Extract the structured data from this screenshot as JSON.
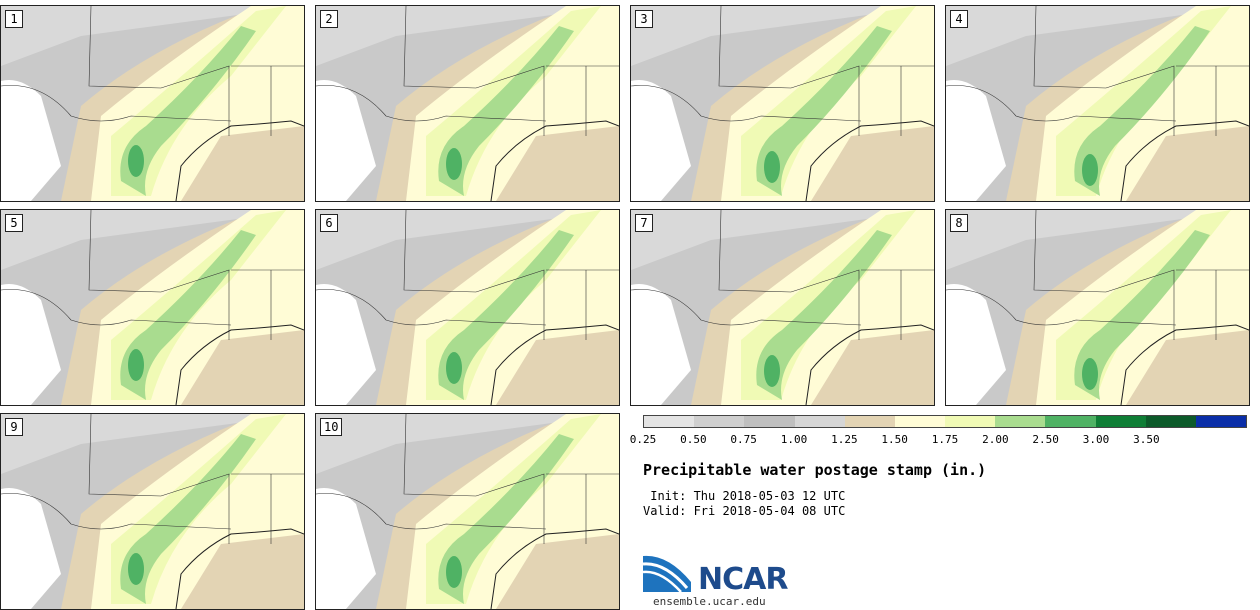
{
  "stamps": [
    {
      "label": "1"
    },
    {
      "label": "2"
    },
    {
      "label": "3"
    },
    {
      "label": "4"
    },
    {
      "label": "5"
    },
    {
      "label": "6"
    },
    {
      "label": "7"
    },
    {
      "label": "8"
    },
    {
      "label": "9"
    },
    {
      "label": "10"
    }
  ],
  "colorbar": {
    "ticks": [
      "0.25",
      "0.50",
      "0.75",
      "1.00",
      "1.25",
      "1.50",
      "1.75",
      "2.00",
      "2.50",
      "3.00",
      "3.50"
    ],
    "colors": [
      "#e4e4e4",
      "#cfcfcf",
      "#bfbfbf",
      "#d6d6d6",
      "#e3d4b4",
      "#fffcd6",
      "#f0fab5",
      "#a9dc8f",
      "#4fb264",
      "#0f7e36",
      "#0c5a2a",
      "#0a2ea8"
    ]
  },
  "title": "Precipitable water postage stamp (in.)",
  "init": " Init: Thu 2018-05-03 12 UTC",
  "valid": "Valid: Fri 2018-05-04 08 UTC",
  "logo": {
    "text": "NCAR",
    "site": "ensemble.ucar.edu"
  }
}
